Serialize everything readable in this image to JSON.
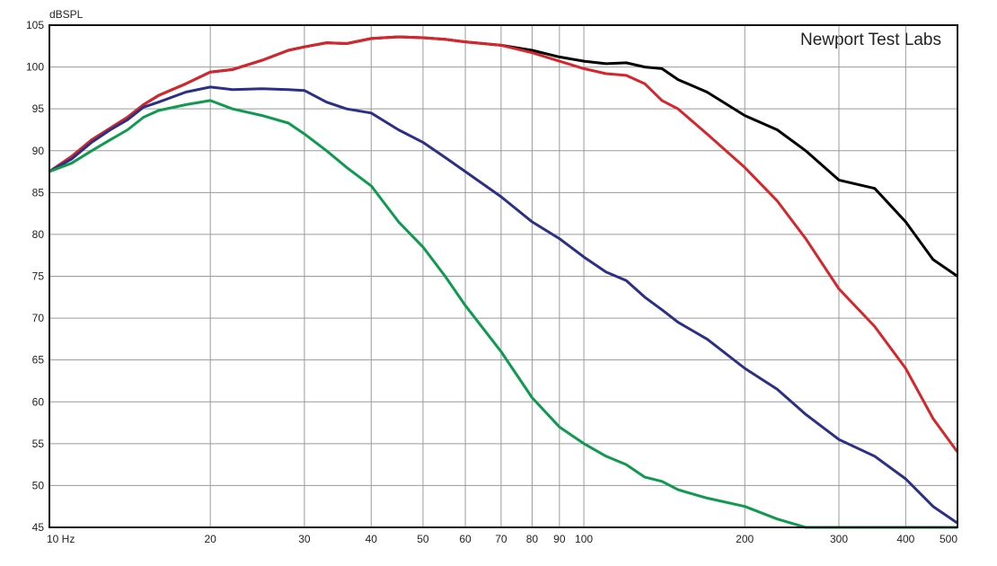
{
  "chart_data": {
    "type": "line",
    "y_label": "dBSPL",
    "annotation": "Newport Test Labs",
    "x_scale": "log",
    "grid": true,
    "x": [
      10,
      11,
      12,
      13,
      14,
      15,
      16,
      18,
      20,
      22,
      25,
      28,
      30,
      33,
      36,
      40,
      45,
      50,
      55,
      60,
      70,
      80,
      90,
      100,
      110,
      120,
      130,
      140,
      150,
      170,
      200,
      230,
      260,
      300,
      350,
      400,
      450,
      500
    ],
    "series": [
      {
        "color": "#000000",
        "values": [
          87.5,
          89.3,
          91.3,
          92.7,
          94,
          95.5,
          96.6,
          98,
          99.4,
          99.7,
          100.8,
          102,
          102.4,
          102.9,
          102.8,
          103.4,
          103.6,
          103.5,
          103.3,
          103,
          102.6,
          102,
          101.2,
          100.7,
          100.4,
          100.5,
          100,
          99.8,
          98.5,
          97,
          94.2,
          92.5,
          90,
          86.5,
          85.5,
          81.5,
          77,
          75
        ]
      },
      {
        "color": "#d7262b",
        "values": [
          87.5,
          89.3,
          91.3,
          92.7,
          94,
          95.5,
          96.6,
          98,
          99.4,
          99.7,
          100.8,
          102,
          102.4,
          102.9,
          102.8,
          103.4,
          103.6,
          103.5,
          103.3,
          103,
          102.6,
          101.7,
          100.7,
          99.8,
          99.2,
          99,
          98,
          96,
          95,
          92,
          88,
          84,
          79.5,
          73.5,
          69,
          64,
          58,
          54
        ]
      },
      {
        "color": "#2b2f87",
        "values": [
          87.5,
          89,
          91,
          92.5,
          93.7,
          95.2,
          95.8,
          97,
          97.6,
          97.3,
          97.4,
          97.3,
          97.2,
          95.8,
          95,
          94.5,
          92.5,
          91,
          89.2,
          87.5,
          84.5,
          81.5,
          79.5,
          77.3,
          75.5,
          74.5,
          72.5,
          71,
          69.5,
          67.5,
          64,
          61.5,
          58.5,
          55.5,
          53.5,
          50.8,
          47.5,
          45.5
        ]
      },
      {
        "color": "#0f9a4f",
        "values": [
          87.5,
          88.5,
          90,
          91.3,
          92.5,
          94,
          94.8,
          95.5,
          96,
          95,
          94.2,
          93.3,
          92,
          90,
          88,
          85.8,
          81.5,
          78.5,
          75,
          71.5,
          66,
          60.5,
          57,
          55,
          53.5,
          52.5,
          51,
          50.5,
          49.5,
          48.5,
          47.5,
          46,
          45,
          45,
          45,
          45,
          45,
          45
        ]
      }
    ],
    "xlim": [
      10,
      500
    ],
    "xticks": [
      {
        "value": 10,
        "label": "10 Hz"
      },
      20,
      30,
      40,
      50,
      60,
      70,
      80,
      90,
      100,
      200,
      300,
      400,
      500
    ],
    "ylim": [
      45,
      105
    ],
    "yticks": [
      45,
      50,
      55,
      60,
      65,
      70,
      75,
      80,
      85,
      90,
      95,
      100,
      105
    ]
  }
}
